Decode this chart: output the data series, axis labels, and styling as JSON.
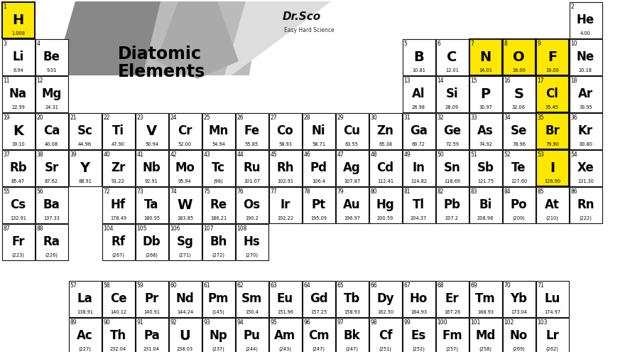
{
  "background": "#ffffff",
  "cell_bg": "#ffffff",
  "cell_border": "#111111",
  "highlight_yellow": "#FFE800",
  "title_line1": "Diatomic",
  "title_line2": "Elements",
  "fig_w": 8.8,
  "fig_h": 4.95,
  "dpi": 100,
  "elements": [
    {
      "num": 1,
      "sym": "H",
      "mass": "1.008",
      "col": 1,
      "row": 1,
      "hl": true
    },
    {
      "num": 2,
      "sym": "He",
      "mass": "4.00",
      "col": 18,
      "row": 1,
      "hl": false
    },
    {
      "num": 3,
      "sym": "Li",
      "mass": "6.94",
      "col": 1,
      "row": 2,
      "hl": false
    },
    {
      "num": 4,
      "sym": "Be",
      "mass": "9.01",
      "col": 2,
      "row": 2,
      "hl": false
    },
    {
      "num": 5,
      "sym": "B",
      "mass": "10.81",
      "col": 13,
      "row": 2,
      "hl": false
    },
    {
      "num": 6,
      "sym": "C",
      "mass": "12.01",
      "col": 14,
      "row": 2,
      "hl": false
    },
    {
      "num": 7,
      "sym": "N",
      "mass": "14.01",
      "col": 15,
      "row": 2,
      "hl": true
    },
    {
      "num": 8,
      "sym": "O",
      "mass": "16.00",
      "col": 16,
      "row": 2,
      "hl": true
    },
    {
      "num": 9,
      "sym": "F",
      "mass": "19.00",
      "col": 17,
      "row": 2,
      "hl": true
    },
    {
      "num": 10,
      "sym": "Ne",
      "mass": "20.18",
      "col": 18,
      "row": 2,
      "hl": false
    },
    {
      "num": 11,
      "sym": "Na",
      "mass": "22.99",
      "col": 1,
      "row": 3,
      "hl": false
    },
    {
      "num": 12,
      "sym": "Mg",
      "mass": "24.31",
      "col": 2,
      "row": 3,
      "hl": false
    },
    {
      "num": 13,
      "sym": "Al",
      "mass": "26.98",
      "col": 13,
      "row": 3,
      "hl": false
    },
    {
      "num": 14,
      "sym": "Si",
      "mass": "28.09",
      "col": 14,
      "row": 3,
      "hl": false
    },
    {
      "num": 15,
      "sym": "P",
      "mass": "30.97",
      "col": 15,
      "row": 3,
      "hl": false
    },
    {
      "num": 16,
      "sym": "S",
      "mass": "32.06",
      "col": 16,
      "row": 3,
      "hl": false
    },
    {
      "num": 17,
      "sym": "Cl",
      "mass": "35.45",
      "col": 17,
      "row": 3,
      "hl": true
    },
    {
      "num": 18,
      "sym": "Ar",
      "mass": "39.95",
      "col": 18,
      "row": 3,
      "hl": false
    },
    {
      "num": 19,
      "sym": "K",
      "mass": "39.10",
      "col": 1,
      "row": 4,
      "hl": false
    },
    {
      "num": 20,
      "sym": "Ca",
      "mass": "40.08",
      "col": 2,
      "row": 4,
      "hl": false
    },
    {
      "num": 21,
      "sym": "Sc",
      "mass": "44.96",
      "col": 3,
      "row": 4,
      "hl": false
    },
    {
      "num": 22,
      "sym": "Ti",
      "mass": "47.90",
      "col": 4,
      "row": 4,
      "hl": false
    },
    {
      "num": 23,
      "sym": "V",
      "mass": "50.94",
      "col": 5,
      "row": 4,
      "hl": false
    },
    {
      "num": 24,
      "sym": "Cr",
      "mass": "52.00",
      "col": 6,
      "row": 4,
      "hl": false
    },
    {
      "num": 25,
      "sym": "Mn",
      "mass": "54.94",
      "col": 7,
      "row": 4,
      "hl": false
    },
    {
      "num": 26,
      "sym": "Fe",
      "mass": "55.85",
      "col": 8,
      "row": 4,
      "hl": false
    },
    {
      "num": 27,
      "sym": "Co",
      "mass": "58.93",
      "col": 9,
      "row": 4,
      "hl": false
    },
    {
      "num": 28,
      "sym": "Ni",
      "mass": "58.71",
      "col": 10,
      "row": 4,
      "hl": false
    },
    {
      "num": 29,
      "sym": "Cu",
      "mass": "63.55",
      "col": 11,
      "row": 4,
      "hl": false
    },
    {
      "num": 30,
      "sym": "Zn",
      "mass": "65.38",
      "col": 12,
      "row": 4,
      "hl": false
    },
    {
      "num": 31,
      "sym": "Ga",
      "mass": "69.72",
      "col": 13,
      "row": 4,
      "hl": false
    },
    {
      "num": 32,
      "sym": "Ge",
      "mass": "72.59",
      "col": 14,
      "row": 4,
      "hl": false
    },
    {
      "num": 33,
      "sym": "As",
      "mass": "74.92",
      "col": 15,
      "row": 4,
      "hl": false
    },
    {
      "num": 34,
      "sym": "Se",
      "mass": "78.96",
      "col": 16,
      "row": 4,
      "hl": false
    },
    {
      "num": 35,
      "sym": "Br",
      "mass": "79.90",
      "col": 17,
      "row": 4,
      "hl": true
    },
    {
      "num": 36,
      "sym": "Kr",
      "mass": "83.80",
      "col": 18,
      "row": 4,
      "hl": false
    },
    {
      "num": 37,
      "sym": "Rb",
      "mass": "85.47",
      "col": 1,
      "row": 5,
      "hl": false
    },
    {
      "num": 38,
      "sym": "Sr",
      "mass": "87.62",
      "col": 2,
      "row": 5,
      "hl": false
    },
    {
      "num": 39,
      "sym": "Y",
      "mass": "88.91",
      "col": 3,
      "row": 5,
      "hl": false
    },
    {
      "num": 40,
      "sym": "Zr",
      "mass": "91.22",
      "col": 4,
      "row": 5,
      "hl": false
    },
    {
      "num": 41,
      "sym": "Nb",
      "mass": "92.91",
      "col": 5,
      "row": 5,
      "hl": false
    },
    {
      "num": 42,
      "sym": "Mo",
      "mass": "95.94",
      "col": 6,
      "row": 5,
      "hl": false
    },
    {
      "num": 43,
      "sym": "Tc",
      "mass": "(98)",
      "col": 7,
      "row": 5,
      "hl": false
    },
    {
      "num": 44,
      "sym": "Ru",
      "mass": "101.07",
      "col": 8,
      "row": 5,
      "hl": false
    },
    {
      "num": 45,
      "sym": "Rh",
      "mass": "102.91",
      "col": 9,
      "row": 5,
      "hl": false
    },
    {
      "num": 46,
      "sym": "Pd",
      "mass": "106.4",
      "col": 10,
      "row": 5,
      "hl": false
    },
    {
      "num": 47,
      "sym": "Ag",
      "mass": "107.87",
      "col": 11,
      "row": 5,
      "hl": false
    },
    {
      "num": 48,
      "sym": "Cd",
      "mass": "112.41",
      "col": 12,
      "row": 5,
      "hl": false
    },
    {
      "num": 49,
      "sym": "In",
      "mass": "114.82",
      "col": 13,
      "row": 5,
      "hl": false
    },
    {
      "num": 50,
      "sym": "Sn",
      "mass": "118.69",
      "col": 14,
      "row": 5,
      "hl": false
    },
    {
      "num": 51,
      "sym": "Sb",
      "mass": "121.75",
      "col": 15,
      "row": 5,
      "hl": false
    },
    {
      "num": 52,
      "sym": "Te",
      "mass": "127.60",
      "col": 16,
      "row": 5,
      "hl": false
    },
    {
      "num": 53,
      "sym": "I",
      "mass": "126.90",
      "col": 17,
      "row": 5,
      "hl": true
    },
    {
      "num": 54,
      "sym": "Xe",
      "mass": "131.30",
      "col": 18,
      "row": 5,
      "hl": false
    },
    {
      "num": 55,
      "sym": "Cs",
      "mass": "132.91",
      "col": 1,
      "row": 6,
      "hl": false
    },
    {
      "num": 56,
      "sym": "Ba",
      "mass": "137.33",
      "col": 2,
      "row": 6,
      "hl": false
    },
    {
      "num": 72,
      "sym": "Hf",
      "mass": "178.49",
      "col": 4,
      "row": 6,
      "hl": false
    },
    {
      "num": 73,
      "sym": "Ta",
      "mass": "180.95",
      "col": 5,
      "row": 6,
      "hl": false
    },
    {
      "num": 74,
      "sym": "W",
      "mass": "183.85",
      "col": 6,
      "row": 6,
      "hl": false
    },
    {
      "num": 75,
      "sym": "Re",
      "mass": "186.21",
      "col": 7,
      "row": 6,
      "hl": false
    },
    {
      "num": 76,
      "sym": "Os",
      "mass": "190.2",
      "col": 8,
      "row": 6,
      "hl": false
    },
    {
      "num": 77,
      "sym": "Ir",
      "mass": "192.22",
      "col": 9,
      "row": 6,
      "hl": false
    },
    {
      "num": 78,
      "sym": "Pt",
      "mass": "195.09",
      "col": 10,
      "row": 6,
      "hl": false
    },
    {
      "num": 79,
      "sym": "Au",
      "mass": "196.97",
      "col": 11,
      "row": 6,
      "hl": false
    },
    {
      "num": 80,
      "sym": "Hg",
      "mass": "200.59",
      "col": 12,
      "row": 6,
      "hl": false
    },
    {
      "num": 81,
      "sym": "Tl",
      "mass": "204.37",
      "col": 13,
      "row": 6,
      "hl": false
    },
    {
      "num": 82,
      "sym": "Pb",
      "mass": "207.2",
      "col": 14,
      "row": 6,
      "hl": false
    },
    {
      "num": 83,
      "sym": "Bi",
      "mass": "208.98",
      "col": 15,
      "row": 6,
      "hl": false
    },
    {
      "num": 84,
      "sym": "Po",
      "mass": "(209)",
      "col": 16,
      "row": 6,
      "hl": false
    },
    {
      "num": 85,
      "sym": "At",
      "mass": "(210)",
      "col": 17,
      "row": 6,
      "hl": false
    },
    {
      "num": 86,
      "sym": "Rn",
      "mass": "(222)",
      "col": 18,
      "row": 6,
      "hl": false
    },
    {
      "num": 87,
      "sym": "Fr",
      "mass": "(223)",
      "col": 1,
      "row": 7,
      "hl": false
    },
    {
      "num": 88,
      "sym": "Ra",
      "mass": "(226)",
      "col": 2,
      "row": 7,
      "hl": false
    },
    {
      "num": 104,
      "sym": "Rf",
      "mass": "(267)",
      "col": 4,
      "row": 7,
      "hl": false
    },
    {
      "num": 105,
      "sym": "Db",
      "mass": "(268)",
      "col": 5,
      "row": 7,
      "hl": false
    },
    {
      "num": 106,
      "sym": "Sg",
      "mass": "(271)",
      "col": 6,
      "row": 7,
      "hl": false
    },
    {
      "num": 107,
      "sym": "Bh",
      "mass": "(272)",
      "col": 7,
      "row": 7,
      "hl": false
    },
    {
      "num": 108,
      "sym": "Hs",
      "mass": "(270)",
      "col": 8,
      "row": 7,
      "hl": false
    },
    {
      "num": 57,
      "sym": "La",
      "mass": "138.91",
      "col": 3,
      "row": 9,
      "hl": false
    },
    {
      "num": 58,
      "sym": "Ce",
      "mass": "140.12",
      "col": 4,
      "row": 9,
      "hl": false
    },
    {
      "num": 59,
      "sym": "Pr",
      "mass": "140.91",
      "col": 5,
      "row": 9,
      "hl": false
    },
    {
      "num": 60,
      "sym": "Nd",
      "mass": "144.24",
      "col": 6,
      "row": 9,
      "hl": false
    },
    {
      "num": 61,
      "sym": "Pm",
      "mass": "(145)",
      "col": 7,
      "row": 9,
      "hl": false
    },
    {
      "num": 62,
      "sym": "Sm",
      "mass": "150.4",
      "col": 8,
      "row": 9,
      "hl": false
    },
    {
      "num": 63,
      "sym": "Eu",
      "mass": "151.96",
      "col": 9,
      "row": 9,
      "hl": false
    },
    {
      "num": 64,
      "sym": "Gd",
      "mass": "157.25",
      "col": 10,
      "row": 9,
      "hl": false
    },
    {
      "num": 65,
      "sym": "Tb",
      "mass": "158.93",
      "col": 11,
      "row": 9,
      "hl": false
    },
    {
      "num": 66,
      "sym": "Dy",
      "mass": "162.50",
      "col": 12,
      "row": 9,
      "hl": false
    },
    {
      "num": 67,
      "sym": "Ho",
      "mass": "164.93",
      "col": 13,
      "row": 9,
      "hl": false
    },
    {
      "num": 68,
      "sym": "Er",
      "mass": "167.26",
      "col": 14,
      "row": 9,
      "hl": false
    },
    {
      "num": 69,
      "sym": "Tm",
      "mass": "168.93",
      "col": 15,
      "row": 9,
      "hl": false
    },
    {
      "num": 70,
      "sym": "Yb",
      "mass": "173.04",
      "col": 16,
      "row": 9,
      "hl": false
    },
    {
      "num": 71,
      "sym": "Lu",
      "mass": "174.97",
      "col": 17,
      "row": 9,
      "hl": false
    },
    {
      "num": 89,
      "sym": "Ac",
      "mass": "(227)",
      "col": 3,
      "row": 10,
      "hl": false
    },
    {
      "num": 90,
      "sym": "Th",
      "mass": "232.04",
      "col": 4,
      "row": 10,
      "hl": false
    },
    {
      "num": 91,
      "sym": "Pa",
      "mass": "231.04",
      "col": 5,
      "row": 10,
      "hl": false
    },
    {
      "num": 92,
      "sym": "U",
      "mass": "238.03",
      "col": 6,
      "row": 10,
      "hl": false
    },
    {
      "num": 93,
      "sym": "Np",
      "mass": "(237)",
      "col": 7,
      "row": 10,
      "hl": false
    },
    {
      "num": 94,
      "sym": "Pu",
      "mass": "(244)",
      "col": 8,
      "row": 10,
      "hl": false
    },
    {
      "num": 95,
      "sym": "Am",
      "mass": "(243)",
      "col": 9,
      "row": 10,
      "hl": false
    },
    {
      "num": 96,
      "sym": "Cm",
      "mass": "(247)",
      "col": 10,
      "row": 10,
      "hl": false
    },
    {
      "num": 97,
      "sym": "Bk",
      "mass": "(247)",
      "col": 11,
      "row": 10,
      "hl": false
    },
    {
      "num": 98,
      "sym": "Cf",
      "mass": "(251)",
      "col": 12,
      "row": 10,
      "hl": false
    },
    {
      "num": 99,
      "sym": "Es",
      "mass": "(252)",
      "col": 13,
      "row": 10,
      "hl": false
    },
    {
      "num": 100,
      "sym": "Fm",
      "mass": "(257)",
      "col": 14,
      "row": 10,
      "hl": false
    },
    {
      "num": 101,
      "sym": "Md",
      "mass": "(258)",
      "col": 15,
      "row": 10,
      "hl": false
    },
    {
      "num": 102,
      "sym": "No",
      "mass": "(269)",
      "col": 16,
      "row": 10,
      "hl": false
    },
    {
      "num": 103,
      "sym": "Lr",
      "mass": "(262)",
      "col": 17,
      "row": 10,
      "hl": false
    }
  ]
}
